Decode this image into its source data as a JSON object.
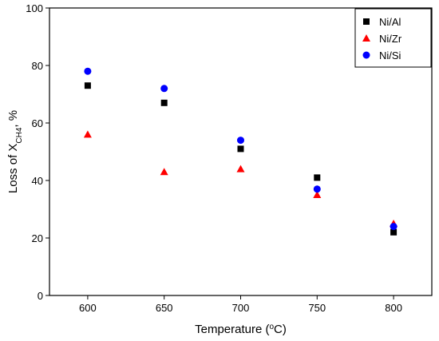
{
  "chart_data": {
    "type": "scatter",
    "xlabel": {
      "prefix": "Temperature (",
      "sup": "o",
      "suffix": "C)"
    },
    "ylabel": {
      "prefix": "Loss of X",
      "sub": "CH4",
      "suffix": ", %"
    },
    "x": [
      600,
      650,
      700,
      750,
      800
    ],
    "xticks": [
      600,
      650,
      700,
      750,
      800
    ],
    "xlim": [
      575,
      825
    ],
    "ylim": [
      0,
      100
    ],
    "yticks": [
      0,
      20,
      40,
      60,
      80,
      100
    ],
    "grid": false,
    "legend_position": "top-right",
    "series": [
      {
        "name": "Ni/Al",
        "marker": "square",
        "color": "#000000",
        "values": [
          73,
          67,
          51,
          41,
          22
        ]
      },
      {
        "name": "Ni/Zr",
        "marker": "triangle",
        "color": "#ff0000",
        "values": [
          56,
          43,
          44,
          35,
          25
        ]
      },
      {
        "name": "Ni/Si",
        "marker": "circle",
        "color": "#0000ff",
        "values": [
          78,
          72,
          54,
          37,
          24
        ]
      }
    ]
  }
}
